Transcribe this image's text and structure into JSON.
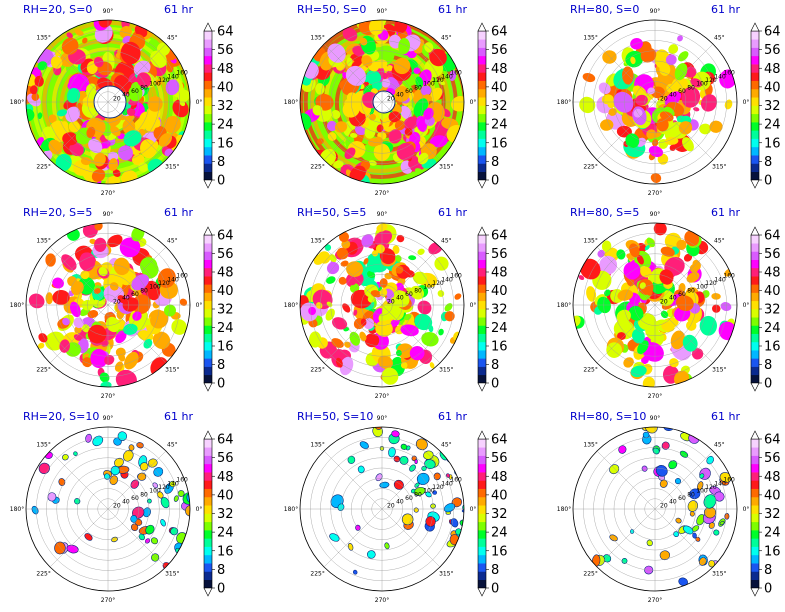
{
  "colors": {
    "title": "#0000cc",
    "scale": [
      "#07123b",
      "#0b2a8f",
      "#1a55f0",
      "#00b7ff",
      "#00ffef",
      "#00ff9a",
      "#00ff2a",
      "#7dff00",
      "#d9ff00",
      "#ffe000",
      "#ffaa00",
      "#ff6a00",
      "#ff1a1a",
      "#ff1f79",
      "#ff00ff",
      "#d85bff",
      "#e99bff",
      "#f7d2ff"
    ]
  },
  "colorbar": {
    "ticks": [
      "0",
      "8",
      "16",
      "24",
      "32",
      "40",
      "48",
      "56",
      "64"
    ]
  },
  "polar": {
    "angle_labels": [
      "90°",
      "45°",
      "0°",
      "315°",
      "270°",
      "225°",
      "180°",
      "135°"
    ],
    "radial_labels": [
      "20",
      "40",
      "60",
      "80",
      "100",
      "120",
      "140",
      "160"
    ]
  },
  "chart_data": [
    {
      "type": "heatmap",
      "projection": "polar",
      "title": "RH=20, S=0",
      "time_label": "61 hr",
      "colorbar_range": [
        0,
        64
      ]
    },
    {
      "type": "heatmap",
      "projection": "polar",
      "title": "RH=50, S=0",
      "time_label": "61 hr",
      "colorbar_range": [
        0,
        64
      ]
    },
    {
      "type": "heatmap",
      "projection": "polar",
      "title": "RH=80, S=0",
      "time_label": "61 hr",
      "colorbar_range": [
        0,
        64
      ]
    },
    {
      "type": "heatmap",
      "projection": "polar",
      "title": "RH=20, S=5",
      "time_label": "61 hr",
      "colorbar_range": [
        0,
        64
      ]
    },
    {
      "type": "heatmap",
      "projection": "polar",
      "title": "RH=50, S=5",
      "time_label": "61 hr",
      "colorbar_range": [
        0,
        64
      ]
    },
    {
      "type": "heatmap",
      "projection": "polar",
      "title": "RH=80, S=5",
      "time_label": "61 hr",
      "colorbar_range": [
        0,
        64
      ]
    },
    {
      "type": "heatmap",
      "projection": "polar",
      "title": "RH=20, S=10",
      "time_label": "61 hr",
      "colorbar_range": [
        0,
        64
      ]
    },
    {
      "type": "heatmap",
      "projection": "polar",
      "title": "RH=50, S=10",
      "time_label": "61 hr",
      "colorbar_range": [
        0,
        64
      ]
    },
    {
      "type": "heatmap",
      "projection": "polar",
      "title": "RH=80, S=10",
      "time_label": "61 hr",
      "colorbar_range": [
        0,
        64
      ]
    }
  ]
}
